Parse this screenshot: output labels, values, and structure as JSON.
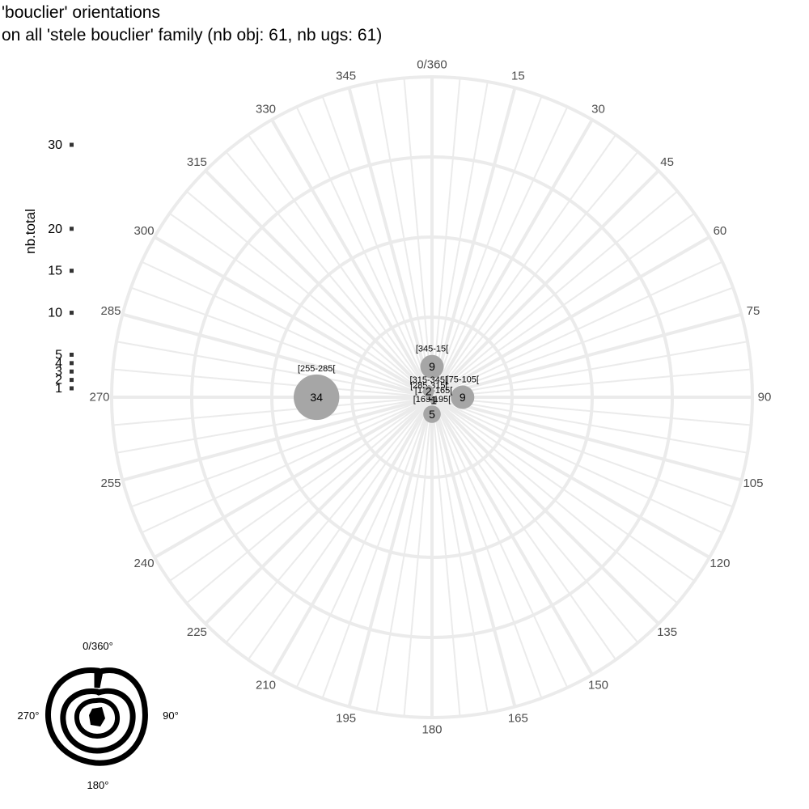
{
  "chart_data": {
    "type": "scatter",
    "title": "'bouclier' orientations",
    "subtitle": "on all 'stele bouclier' family (nb obj: 61, nb ugs: 61)",
    "coordinate_system": "polar",
    "angle_ticks": [
      "0/360",
      "15",
      "30",
      "45",
      "60",
      "75",
      "90",
      "105",
      "120",
      "135",
      "150",
      "165",
      "180",
      "195",
      "210",
      "225",
      "240",
      "255",
      "270",
      "285",
      "300",
      "315",
      "330",
      "345"
    ],
    "points": [
      {
        "label": "[345-15[",
        "angle": 0,
        "value": 9
      },
      {
        "label": "[75-105[",
        "angle": 90,
        "value": 9
      },
      {
        "label": "[135-165[",
        "angle": 150,
        "value": 1
      },
      {
        "label": "[165-195[",
        "angle": 180,
        "value": 5
      },
      {
        "label": "[255-285[",
        "angle": 270,
        "value": 34
      },
      {
        "label": "[285-315[",
        "angle": 300,
        "value": 1
      },
      {
        "label": "[315-345[",
        "angle": 330,
        "value": 2
      }
    ],
    "size_legend": {
      "title": "nb.total",
      "values": [
        1,
        2,
        3,
        4,
        5,
        10,
        15,
        20,
        30
      ]
    },
    "orientation_key": {
      "top": "0/360°",
      "right": "90°",
      "bottom": "180°",
      "left": "270°"
    },
    "colors": {
      "grid": "#ebebeb",
      "point": "#a6a6a6",
      "axis_text": "#4d4d4d"
    }
  }
}
